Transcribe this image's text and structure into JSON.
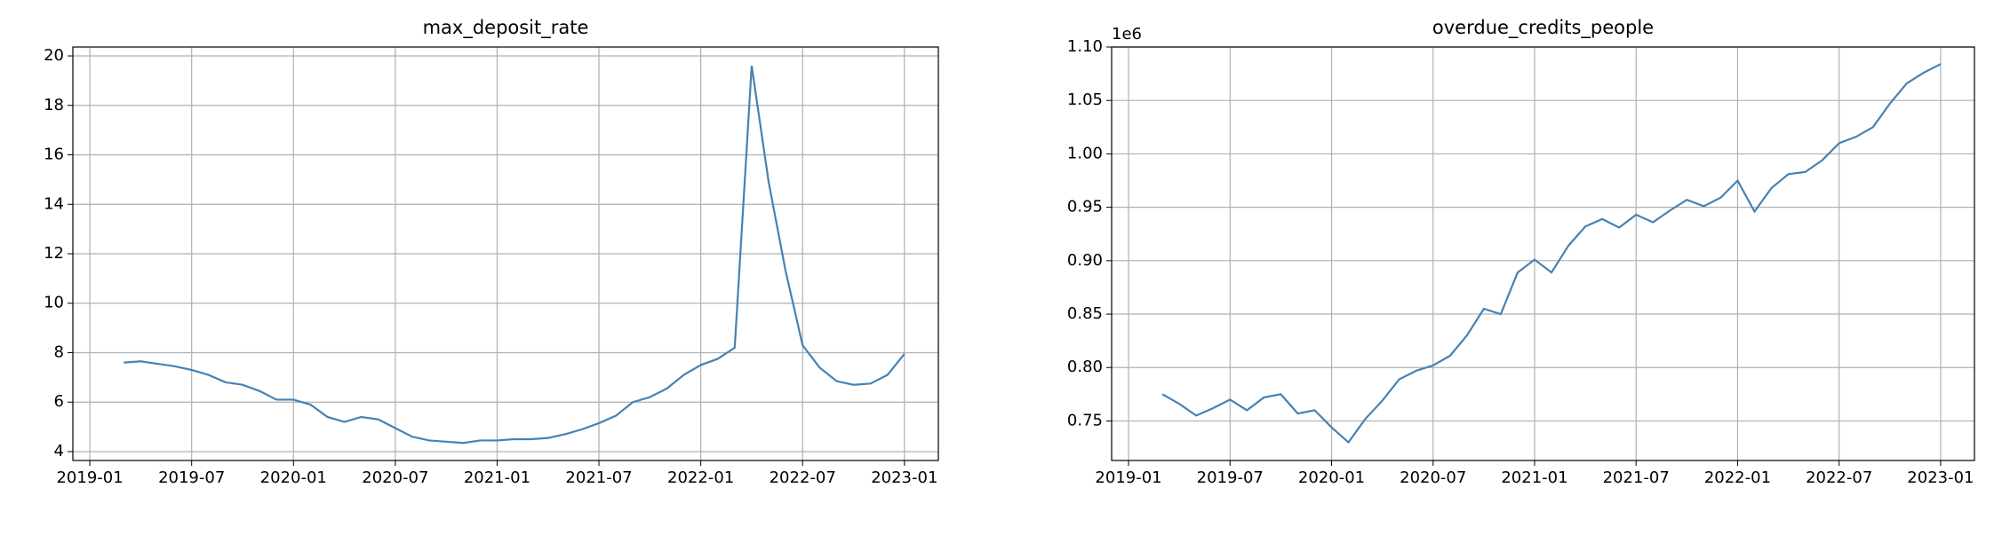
{
  "chart_data": [
    {
      "type": "line",
      "title": "max_deposit_rate",
      "color": "#4682b4",
      "grid": true,
      "x": [
        "2019-03",
        "2019-04",
        "2019-05",
        "2019-06",
        "2019-07",
        "2019-08",
        "2019-09",
        "2019-10",
        "2019-11",
        "2019-12",
        "2020-01",
        "2020-02",
        "2020-03",
        "2020-04",
        "2020-05",
        "2020-06",
        "2020-07",
        "2020-08",
        "2020-09",
        "2020-10",
        "2020-11",
        "2020-12",
        "2021-01",
        "2021-02",
        "2021-03",
        "2021-04",
        "2021-05",
        "2021-06",
        "2021-07",
        "2021-08",
        "2021-09",
        "2021-10",
        "2021-11",
        "2021-12",
        "2022-01",
        "2022-02",
        "2022-03",
        "2022-04",
        "2022-05",
        "2022-06",
        "2022-07",
        "2022-08",
        "2022-09",
        "2022-10",
        "2022-11",
        "2022-12",
        "2023-01"
      ],
      "values": [
        7.6,
        7.65,
        7.55,
        7.45,
        7.3,
        7.1,
        6.8,
        6.7,
        6.45,
        6.1,
        6.1,
        5.9,
        5.4,
        5.2,
        5.4,
        5.3,
        4.95,
        4.6,
        4.45,
        4.4,
        4.35,
        4.45,
        4.45,
        4.5,
        4.5,
        4.55,
        4.7,
        4.9,
        5.15,
        5.45,
        6.0,
        6.2,
        6.55,
        7.1,
        7.5,
        7.75,
        8.2,
        19.6,
        14.9,
        11.3,
        8.3,
        7.4,
        6.85,
        6.7,
        6.75,
        7.1,
        7.95
      ],
      "xlim": [
        "2018-12",
        "2023-03"
      ],
      "xticks": [
        "2019-01",
        "2019-07",
        "2020-01",
        "2020-07",
        "2021-01",
        "2021-07",
        "2022-01",
        "2022-07",
        "2023-01"
      ],
      "ylim": [
        3.64,
        20.36
      ],
      "yticks": [
        4,
        6,
        8,
        10,
        12,
        14,
        16,
        18,
        20
      ]
    },
    {
      "type": "line",
      "title": "overdue_credits_people",
      "color": "#4682b4",
      "grid": true,
      "y_offset_label": "1e6",
      "x": [
        "2019-03",
        "2019-04",
        "2019-05",
        "2019-06",
        "2019-07",
        "2019-08",
        "2019-09",
        "2019-10",
        "2019-11",
        "2019-12",
        "2020-01",
        "2020-02",
        "2020-03",
        "2020-04",
        "2020-05",
        "2020-06",
        "2020-07",
        "2020-08",
        "2020-09",
        "2020-10",
        "2020-11",
        "2020-12",
        "2021-01",
        "2021-02",
        "2021-03",
        "2021-04",
        "2021-05",
        "2021-06",
        "2021-07",
        "2021-08",
        "2021-09",
        "2021-10",
        "2021-11",
        "2021-12",
        "2022-01",
        "2022-02",
        "2022-03",
        "2022-04",
        "2022-05",
        "2022-06",
        "2022-07",
        "2022-08",
        "2022-09",
        "2022-10",
        "2022-11",
        "2022-12",
        "2023-01"
      ],
      "values": [
        775000,
        766000,
        755000,
        762000,
        770000,
        760000,
        772000,
        775000,
        757000,
        760000,
        744000,
        730000,
        752000,
        769000,
        789000,
        797000,
        802000,
        811000,
        830000,
        855000,
        850000,
        889000,
        901000,
        889000,
        914000,
        932000,
        939000,
        931000,
        943000,
        936000,
        947000,
        957000,
        951000,
        959000,
        975000,
        946000,
        968000,
        981000,
        983000,
        994000,
        1010000,
        1016000,
        1025000,
        1047000,
        1066000,
        1076000,
        1084000
      ],
      "xlim": [
        "2018-12",
        "2023-03"
      ],
      "xticks": [
        "2019-01",
        "2019-07",
        "2020-01",
        "2020-07",
        "2021-01",
        "2021-07",
        "2022-01",
        "2022-07",
        "2023-01"
      ],
      "ylim": [
        713000,
        1100000
      ],
      "yticks": [
        {
          "value": 750000,
          "label": "0.75"
        },
        {
          "value": 800000,
          "label": "0.80"
        },
        {
          "value": 850000,
          "label": "0.85"
        },
        {
          "value": 900000,
          "label": "0.90"
        },
        {
          "value": 950000,
          "label": "0.95"
        },
        {
          "value": 1000000,
          "label": "1.00"
        },
        {
          "value": 1050000,
          "label": "1.05"
        },
        {
          "value": 1100000,
          "label": "1.10"
        }
      ]
    }
  ]
}
